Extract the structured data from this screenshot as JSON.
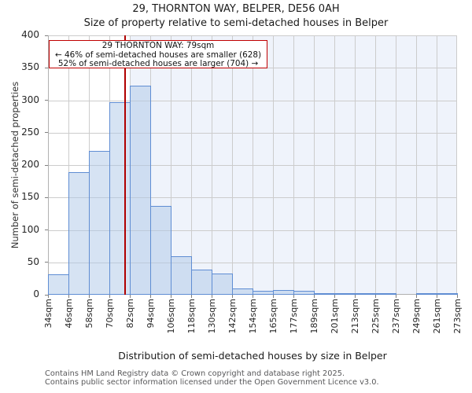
{
  "page": {
    "title": "29, THORNTON WAY, BELPER, DE56 0AH",
    "subtitle": "Size of property relative to semi-detached houses in Belper",
    "footer_line1": "Contains HM Land Registry data © Crown copyright and database right 2025.",
    "footer_line2": "Contains public sector information licensed under the Open Government Licence v3.0."
  },
  "annotation": {
    "title": "29 THORNTON WAY: 79sqm",
    "smaller": "← 46% of semi-detached houses are smaller (628)",
    "larger": "52% of semi-detached houses are larger (704) →"
  },
  "chart_data": {
    "type": "bar",
    "title": "29, THORNTON WAY, BELPER, DE56 0AH",
    "subtitle": "Size of property relative to semi-detached houses in Belper",
    "xlabel": "Distribution of semi-detached houses by size in Belper",
    "ylabel": "Number of semi-detached properties",
    "bin_edges_sqm": [
      34,
      46,
      58,
      70,
      82,
      94,
      106,
      118,
      130,
      142,
      154,
      165,
      177,
      189,
      201,
      213,
      225,
      237,
      249,
      261,
      273
    ],
    "tick_labels": [
      "34sqm",
      "46sqm",
      "58sqm",
      "70sqm",
      "82sqm",
      "94sqm",
      "106sqm",
      "118sqm",
      "130sqm",
      "142sqm",
      "154sqm",
      "165sqm",
      "177sqm",
      "189sqm",
      "201sqm",
      "213sqm",
      "225sqm",
      "237sqm",
      "249sqm",
      "261sqm",
      "273sqm"
    ],
    "values": [
      32,
      189,
      222,
      297,
      322,
      137,
      59,
      39,
      33,
      10,
      6,
      7,
      6,
      3,
      1,
      1,
      2,
      0,
      3,
      1
    ],
    "ylim": [
      0,
      400
    ],
    "ytick_step": 50,
    "grid": true,
    "legend": false,
    "marker_line": {
      "label": "29 THORNTON WAY",
      "size_sqm": 79,
      "color": "#b00000"
    },
    "shaded_region_from_sqm": 82,
    "colors": {
      "bar_fill": "rgba(174,199,232,0.5)",
      "bar_border": "#5f8dd3",
      "shade": "#eff3fb",
      "grid": "#cccccc",
      "spine": "#b0b0b0"
    }
  }
}
